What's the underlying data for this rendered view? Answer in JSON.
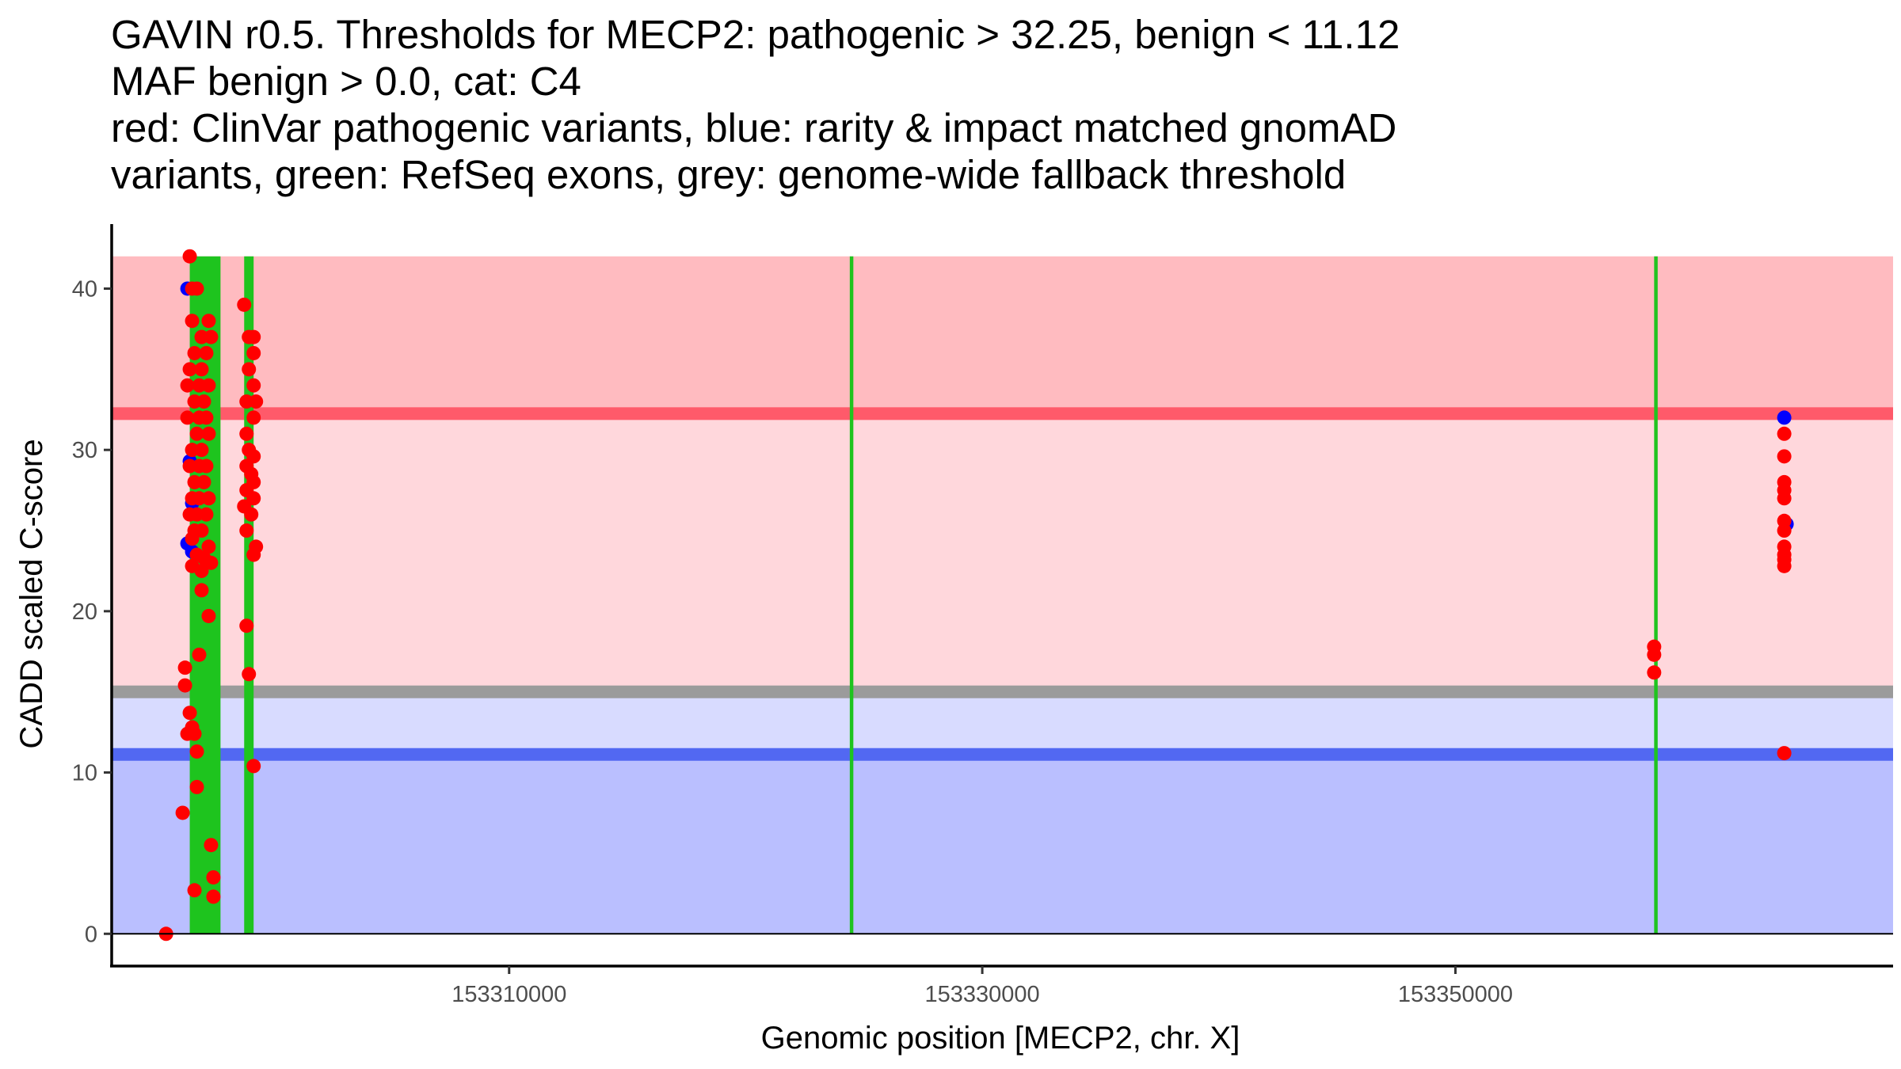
{
  "chart_data": {
    "type": "scatter",
    "title_lines": [
      "GAVIN r0.5. Thresholds for MECP2: pathogenic > 32.25, benign < 11.12",
      "MAF benign > 0.0, cat: C4",
      "red: ClinVar pathogenic variants, blue: rarity & impact matched gnomAD",
      "variants, green: RefSeq exons, grey: genome-wide fallback threshold"
    ],
    "xlabel": "Genomic position [MECP2, chr. X]",
    "ylabel": "CADD scaled C-score",
    "xlim": [
      153293200,
      153368500
    ],
    "ylim": [
      -2,
      44
    ],
    "xticks": [
      153310000,
      153330000,
      153350000
    ],
    "yticks": [
      0,
      10,
      20,
      30,
      40
    ],
    "grid": false,
    "bands": [
      {
        "name": "pathogenic-zone",
        "y0": 32.25,
        "y1": 42,
        "color": "#ffbbc0"
      },
      {
        "name": "pathogenic-uncertain-zone",
        "y0": 15,
        "y1": 32.25,
        "color": "#ffd7dc"
      },
      {
        "name": "benign-uncertain-zone",
        "y0": 11.12,
        "y1": 15,
        "color": "#d8dbff"
      },
      {
        "name": "benign-zone",
        "y0": 0,
        "y1": 11.12,
        "color": "#babfff"
      }
    ],
    "threshold_lines": [
      {
        "name": "pathogenic-threshold",
        "y": 32.25,
        "color": "#ff5a6a"
      },
      {
        "name": "fallback-threshold",
        "y": 15,
        "color": "#9b9b9b"
      },
      {
        "name": "benign-threshold",
        "y": 11.12,
        "color": "#5268f2"
      }
    ],
    "exons": [
      {
        "start": 153296500,
        "end": 153297800
      },
      {
        "start": 153298800,
        "end": 153299200
      },
      {
        "start": 153324400,
        "end": 153324550
      },
      {
        "start": 153358400,
        "end": 153358550
      }
    ],
    "exon_y_range": [
      0,
      42
    ],
    "exon_color": "#1ec41e",
    "series": [
      {
        "name": "gnomAD",
        "color": "#0000ff",
        "points": [
          [
            153296400,
            40
          ],
          [
            153296500,
            29.3
          ],
          [
            153296600,
            26.7
          ],
          [
            153296400,
            24.2
          ],
          [
            153296600,
            23.7
          ],
          [
            153363900,
            32
          ],
          [
            153364000,
            25.4
          ]
        ]
      },
      {
        "name": "ClinVar",
        "color": "#ff0000",
        "points": [
          [
            153295500,
            0
          ],
          [
            153296200,
            7.5
          ],
          [
            153296300,
            15.4
          ],
          [
            153296300,
            16.5
          ],
          [
            153296400,
            12.4
          ],
          [
            153296500,
            13.7
          ],
          [
            153296600,
            12.8
          ],
          [
            153296700,
            12.4
          ],
          [
            153296700,
            2.7
          ],
          [
            153296800,
            9.1
          ],
          [
            153296800,
            11.3
          ],
          [
            153296900,
            17.3
          ],
          [
            153297000,
            21.3
          ],
          [
            153297300,
            19.7
          ],
          [
            153297400,
            5.5
          ],
          [
            153297500,
            3.5
          ],
          [
            153297500,
            2.3
          ],
          [
            153296500,
            42
          ],
          [
            153296600,
            40
          ],
          [
            153296800,
            40
          ],
          [
            153296600,
            38
          ],
          [
            153297300,
            38
          ],
          [
            153297000,
            37
          ],
          [
            153297400,
            37
          ],
          [
            153296700,
            36
          ],
          [
            153297200,
            36
          ],
          [
            153296500,
            35
          ],
          [
            153297000,
            35
          ],
          [
            153296400,
            34
          ],
          [
            153296900,
            34
          ],
          [
            153297300,
            34
          ],
          [
            153296700,
            33
          ],
          [
            153297100,
            33
          ],
          [
            153296400,
            32
          ],
          [
            153296900,
            32
          ],
          [
            153297200,
            32
          ],
          [
            153296800,
            31
          ],
          [
            153297300,
            31
          ],
          [
            153296600,
            30
          ],
          [
            153297000,
            30
          ],
          [
            153296500,
            29
          ],
          [
            153296900,
            29
          ],
          [
            153297200,
            29
          ],
          [
            153296700,
            28
          ],
          [
            153297100,
            28
          ],
          [
            153296600,
            27
          ],
          [
            153296900,
            27
          ],
          [
            153297300,
            27
          ],
          [
            153296500,
            26
          ],
          [
            153296800,
            26
          ],
          [
            153297200,
            26
          ],
          [
            153296700,
            25
          ],
          [
            153297000,
            25
          ],
          [
            153296600,
            24.5
          ],
          [
            153297300,
            24
          ],
          [
            153296800,
            23.5
          ],
          [
            153297100,
            23.3
          ],
          [
            153296600,
            22.8
          ],
          [
            153297000,
            22.5
          ],
          [
            153297400,
            23
          ],
          [
            153298800,
            39
          ],
          [
            153299000,
            37
          ],
          [
            153299200,
            37
          ],
          [
            153299200,
            36
          ],
          [
            153299000,
            35
          ],
          [
            153299200,
            34
          ],
          [
            153298900,
            33
          ],
          [
            153299300,
            33
          ],
          [
            153299200,
            32
          ],
          [
            153298900,
            31
          ],
          [
            153299000,
            30
          ],
          [
            153299200,
            29.6
          ],
          [
            153298900,
            29
          ],
          [
            153299100,
            28.5
          ],
          [
            153299200,
            28
          ],
          [
            153298900,
            27.5
          ],
          [
            153299200,
            27
          ],
          [
            153298800,
            26.5
          ],
          [
            153299100,
            26
          ],
          [
            153298900,
            25
          ],
          [
            153299300,
            24
          ],
          [
            153299200,
            23.5
          ],
          [
            153298900,
            19.1
          ],
          [
            153299000,
            16.1
          ],
          [
            153299200,
            10.4
          ],
          [
            153358400,
            17.8
          ],
          [
            153358400,
            17.3
          ],
          [
            153358400,
            16.2
          ],
          [
            153363900,
            31
          ],
          [
            153363900,
            29.6
          ],
          [
            153363900,
            28
          ],
          [
            153363900,
            27.5
          ],
          [
            153363900,
            27
          ],
          [
            153363900,
            25.6
          ],
          [
            153363900,
            25
          ],
          [
            153363900,
            24
          ],
          [
            153363900,
            23.5
          ],
          [
            153363900,
            23.2
          ],
          [
            153363900,
            22.8
          ],
          [
            153363900,
            11.2
          ]
        ]
      }
    ]
  }
}
